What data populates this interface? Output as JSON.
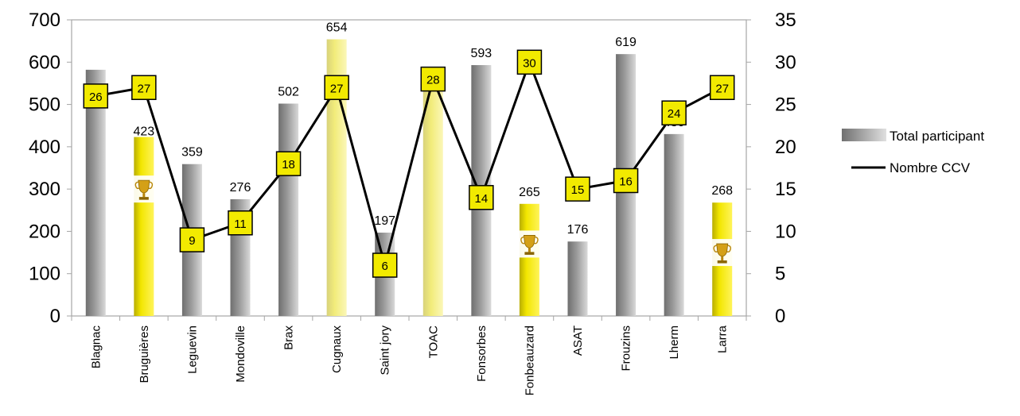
{
  "chart_data": {
    "type": "bar",
    "categories": [
      "Blagnac",
      "Bruguières",
      "Leguevin",
      "Mondoville",
      "Brax",
      "Cugnaux",
      "Saint jory",
      "TOAC",
      "Fonsorbes",
      "Fonbeauzard",
      "ASAT",
      "Frouzins",
      "Lherm",
      "Larra"
    ],
    "series": [
      {
        "name": "Total participant",
        "type": "bar",
        "axis": "left",
        "values": [
          582,
          423,
          359,
          276,
          502,
          654,
          197,
          536,
          593,
          265,
          176,
          619,
          430,
          268
        ],
        "labels": [
          "582",
          "423",
          "359",
          "276",
          "502",
          "654",
          "197",
          "536",
          "593",
          "265",
          "176",
          "619",
          "430",
          "268"
        ],
        "highlighted": [
          false,
          true,
          false,
          false,
          false,
          true,
          false,
          true,
          false,
          true,
          false,
          false,
          false,
          true
        ],
        "trophy": [
          false,
          true,
          false,
          false,
          false,
          false,
          false,
          false,
          false,
          true,
          false,
          false,
          false,
          true
        ]
      },
      {
        "name": "Nombre CCV",
        "type": "line",
        "axis": "right",
        "values": [
          26,
          27,
          9,
          11,
          18,
          27,
          6,
          28,
          14,
          30,
          15,
          16,
          24,
          27
        ],
        "labels": [
          "26",
          "27",
          "9",
          "11",
          "18",
          "27",
          "6",
          "28",
          "14",
          "30",
          "15",
          "16",
          "24",
          "27"
        ]
      }
    ],
    "left_axis": {
      "ylim": [
        0,
        700
      ],
      "ticks": [
        "0",
        "100",
        "200",
        "300",
        "400",
        "500",
        "600",
        "700"
      ]
    },
    "right_axis": {
      "ylim": [
        0,
        35
      ],
      "ticks": [
        "0",
        "5",
        "10",
        "15",
        "20",
        "25",
        "30",
        "35"
      ]
    },
    "grid": false,
    "legend_position": "right",
    "colors": {
      "bar_gray": "#8c8c8c",
      "bar_yellow": "#f2e600",
      "bar_yellow_pale": "#f2ec7a",
      "line": "#000000",
      "marker_fill": "#f2ea00",
      "marker_stroke": "#000000",
      "plot_border": "#a6a6a6"
    }
  }
}
